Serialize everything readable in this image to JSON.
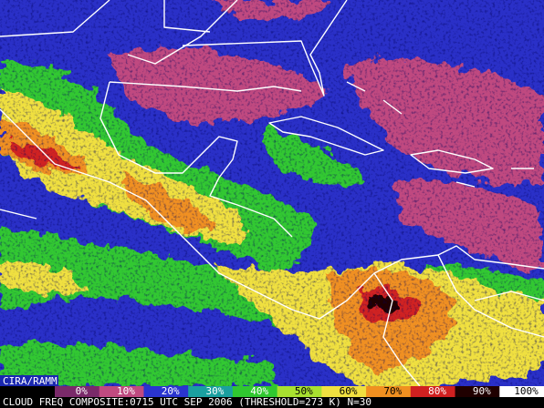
{
  "credit": "CIRA/RAMM",
  "legend": {
    "items": [
      {
        "label": "0%",
        "color": "#7a2a6a"
      },
      {
        "label": "10%",
        "color": "#c04a80"
      },
      {
        "label": "20%",
        "color": "#2a34d0"
      },
      {
        "label": "30%",
        "color": "#1aa0a0"
      },
      {
        "label": "40%",
        "color": "#30c830"
      },
      {
        "label": "50%",
        "color": "#a8e030"
      },
      {
        "label": "60%",
        "color": "#f0e040"
      },
      {
        "label": "70%",
        "color": "#f09020"
      },
      {
        "label": "80%",
        "color": "#d02020"
      },
      {
        "label": "90%",
        "color": "#200000"
      },
      {
        "label": "100%",
        "color": "#ffffff"
      }
    ]
  },
  "caption": "CLOUD FREQ COMPOSITE:0715 UTC SEP 2006 (THRESHOLD=273 K) N=30"
}
